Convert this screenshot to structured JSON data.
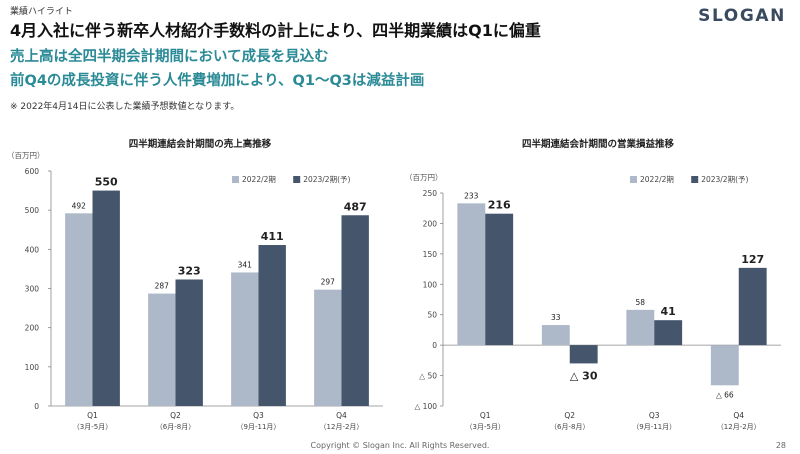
{
  "header": {
    "section_label": "業績ハイライト",
    "logo": "SLOGAN",
    "headline": "4月入社に伴う新卒人材紹介手数料の計上により、四半期業績はQ1に偏重",
    "subheadline_1": "売上高は全四半期会計期間において成長を見込む",
    "subheadline_2": "前Q4の成長投資に伴う人件費増加により、Q1～Q3は減益計画",
    "note": "※ 2022年4月14日に公表した業績予想数値となります。"
  },
  "footer": {
    "copyright": "Copyright © Slogan Inc. All Rights Reserved.",
    "page_number": "28"
  },
  "colors": {
    "series_2022": "#adb9c8",
    "series_2023": "#45556c",
    "axis": "#888888",
    "grid": "#e6e6e6"
  },
  "chart_data": [
    {
      "type": "bar",
      "title": "四半期連結会計期間の売上高推移",
      "unit_label": "（百万円）",
      "categories": [
        "Q1",
        "Q2",
        "Q3",
        "Q4"
      ],
      "category_sublabels": [
        "（3月-5月）",
        "（6月-8月）",
        "（9月-11月）",
        "（12月-2月）"
      ],
      "series": [
        {
          "name": "2022/2期",
          "values": [
            492,
            287,
            341,
            297
          ],
          "labels": [
            "492",
            "287",
            "341",
            "297"
          ]
        },
        {
          "name": "2023/2期(予)",
          "values": [
            550,
            323,
            411,
            487
          ],
          "labels": [
            "550",
            "323",
            "411",
            "487"
          ]
        }
      ],
      "ylim": [
        0,
        600
      ],
      "yticks": [
        0,
        100,
        200,
        300,
        400,
        500,
        600
      ],
      "ytick_labels": [
        "0",
        "100",
        "200",
        "300",
        "400",
        "500",
        "600"
      ],
      "legend_position": "top-right",
      "grid": false
    },
    {
      "type": "bar",
      "title": "四半期連結会計期間の営業損益推移",
      "unit_label": "（百万円）",
      "categories": [
        "Q1",
        "Q2",
        "Q3",
        "Q4"
      ],
      "category_sublabels": [
        "（3月-5月）",
        "（6月-8月）",
        "（9月-11月）",
        "（12月-2月）"
      ],
      "series": [
        {
          "name": "2022/2期",
          "values": [
            233,
            33,
            58,
            -66
          ],
          "labels": [
            "233",
            "33",
            "58",
            "△ 66"
          ]
        },
        {
          "name": "2023/2期(予)",
          "values": [
            216,
            -30,
            41,
            127
          ],
          "labels": [
            "216",
            "△ 30",
            "41",
            "127"
          ]
        }
      ],
      "ylim": [
        -100,
        250
      ],
      "yticks": [
        -100,
        -50,
        0,
        50,
        100,
        150,
        200,
        250
      ],
      "ytick_labels": [
        "△ 100",
        "△ 50",
        "0",
        "50",
        "100",
        "150",
        "200",
        "250"
      ],
      "legend_position": "top-right",
      "grid": false
    }
  ]
}
